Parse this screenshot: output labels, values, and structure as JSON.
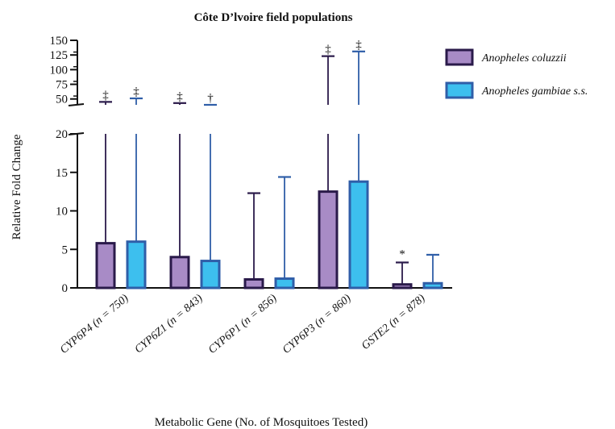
{
  "chart_data": {
    "type": "bar",
    "title": "Côte D’lvoire field populations",
    "xlabel": "Metabolic Gene (No. of Mosquitoes Tested)",
    "ylabel": "Relative Fold Change",
    "y_axis": {
      "broken": true,
      "lower_ticks": [
        0,
        5,
        10,
        15,
        20
      ],
      "upper_ticks": [
        50,
        75,
        100,
        125,
        150
      ],
      "lower_range": [
        0,
        20
      ],
      "upper_range": [
        40,
        150
      ]
    },
    "categories": [
      {
        "gene": "CYP6P4",
        "n": "(n = 750)"
      },
      {
        "gene": "CYP6Z1",
        "n": "(n = 843)"
      },
      {
        "gene": "CYP6P1",
        "n": "(n = 856)"
      },
      {
        "gene": "CYP6P3",
        "n": "(n = 860)"
      },
      {
        "gene": "GSTE2",
        "n": "(n = 878)"
      }
    ],
    "series": [
      {
        "name": "Anopheles coluzzii",
        "fill": "#a88bc6",
        "stroke": "#2a1a4a",
        "values": [
          5.8,
          4.0,
          1.1,
          12.5,
          0.45
        ],
        "error_upper": [
          45,
          43,
          12.3,
          123,
          3.3
        ],
        "marks": [
          "‡",
          "‡",
          "",
          "‡",
          "*"
        ]
      },
      {
        "name": "Anopheles gambiae s.s.",
        "fill": "#3dbfee",
        "stroke": "#2f5ea8",
        "values": [
          6.0,
          3.5,
          1.2,
          13.8,
          0.6
        ],
        "error_upper": [
          51,
          38,
          14.4,
          131,
          4.3
        ],
        "marks": [
          "‡",
          "†",
          "",
          "‡",
          ""
        ]
      }
    ],
    "legend": "top-right"
  }
}
